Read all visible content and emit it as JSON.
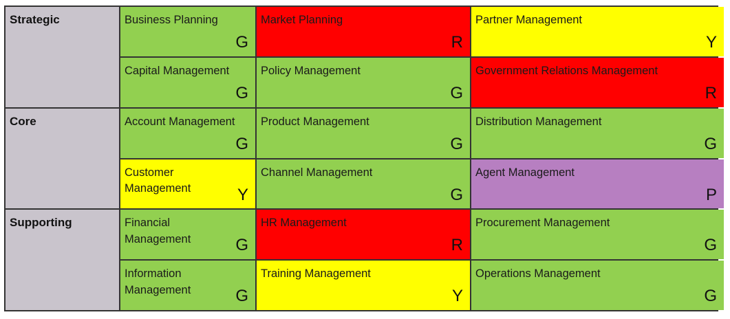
{
  "colors": {
    "G": "#92d050",
    "R": "#ff0000",
    "Y": "#ffff00",
    "P": "#b77fc1",
    "tier": "#c9c4cc"
  },
  "tiers": [
    {
      "label": "Strategic",
      "rows": [
        [
          {
            "name": "Business Planning",
            "rating": "G"
          },
          {
            "name": "Market Planning",
            "rating": "R"
          },
          {
            "name": "Partner Management",
            "rating": "Y"
          }
        ],
        [
          {
            "name": "Capital Management",
            "rating": "G"
          },
          {
            "name": "Policy Management",
            "rating": "G"
          },
          {
            "name": "Government Relations Management",
            "rating": "R"
          }
        ]
      ]
    },
    {
      "label": "Core",
      "rows": [
        [
          {
            "name": "Account Management",
            "rating": "G"
          },
          {
            "name": "Product Management",
            "rating": "G"
          },
          {
            "name": "Distribution Management",
            "rating": "G"
          }
        ],
        [
          {
            "name": "Customer Management",
            "rating": "Y"
          },
          {
            "name": "Channel Management",
            "rating": "G"
          },
          {
            "name": "Agent Management",
            "rating": "P"
          }
        ]
      ]
    },
    {
      "label": "Supporting",
      "rows": [
        [
          {
            "name": "Financial Management",
            "rating": "G"
          },
          {
            "name": "HR Management",
            "rating": "R"
          },
          {
            "name": "Procurement Management",
            "rating": "G"
          }
        ],
        [
          {
            "name": "Information Management",
            "rating": "G"
          },
          {
            "name": "Training Management",
            "rating": "Y"
          },
          {
            "name": "Operations Management",
            "rating": "G"
          }
        ]
      ]
    }
  ]
}
